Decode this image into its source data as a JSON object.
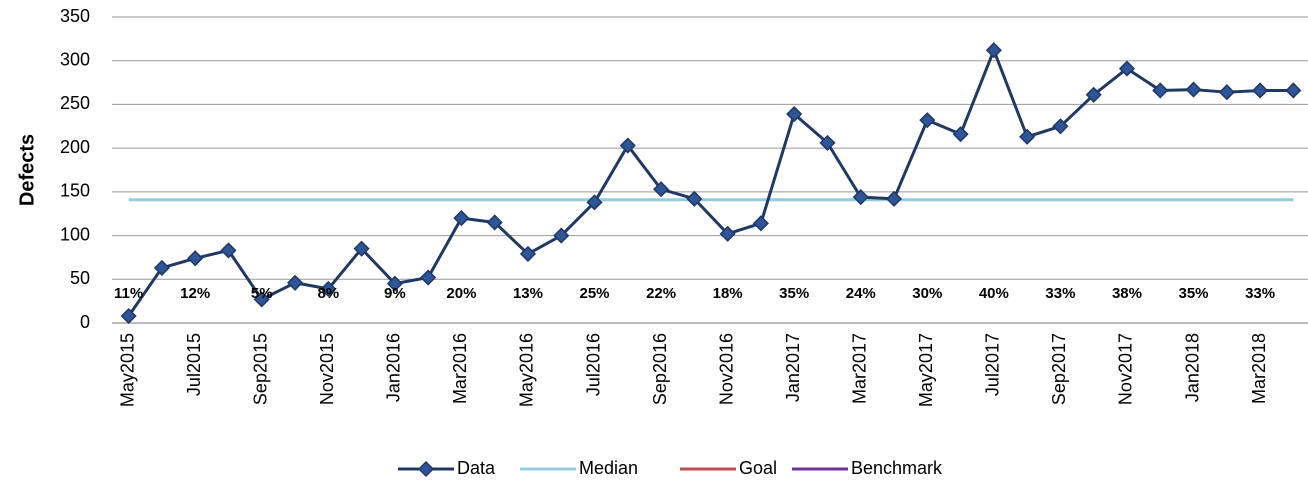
{
  "chart_data": {
    "type": "line",
    "y_label": "Defects",
    "categories": [
      "May2015",
      null,
      "Jul2015",
      null,
      "Sep2015",
      null,
      "Nov2015",
      null,
      "Jan2016",
      null,
      "Mar2016",
      null,
      "May2016",
      null,
      "Jul2016",
      null,
      "Sep2016",
      null,
      "Nov2016",
      null,
      "Jan2017",
      null,
      "Mar2017",
      null,
      "May2017",
      null,
      "Jul2017",
      null,
      "Sep2017",
      null,
      "Nov2017",
      null,
      "Jan2018",
      null,
      "Mar2018",
      null
    ],
    "series": [
      {
        "name": "Data",
        "color": "#1f3864",
        "marker_color": "#2e5597",
        "values": [
          8,
          63,
          74,
          83,
          27,
          46,
          39,
          85,
          45,
          52,
          120,
          115,
          79,
          100,
          138,
          203,
          153,
          142,
          102,
          114,
          239,
          206,
          144,
          142,
          232,
          216,
          312,
          213,
          225,
          261,
          291,
          266,
          267,
          264,
          266,
          266
        ]
      },
      {
        "name": "Median",
        "color": "#92cddc",
        "values": [
          141,
          141,
          141,
          141,
          141,
          141,
          141,
          141,
          141,
          141,
          141,
          141,
          141,
          141,
          141,
          141,
          141,
          141,
          141,
          141,
          141,
          141,
          141,
          141,
          141,
          141,
          141,
          141,
          141,
          141,
          141,
          141,
          141,
          141,
          141,
          141
        ]
      },
      {
        "name": "Goal",
        "color": "#c0504d",
        "values": [
          null,
          null,
          null,
          null,
          null,
          null,
          null,
          null,
          null,
          null,
          null,
          null,
          null,
          null,
          null,
          null,
          null,
          null,
          null,
          null,
          null,
          null,
          null,
          null,
          null,
          null,
          null,
          null,
          null,
          null,
          null,
          null,
          null,
          null,
          null,
          null
        ]
      },
      {
        "name": "Benchmark",
        "color": "#7030a0",
        "values": [
          null,
          null,
          null,
          null,
          null,
          null,
          null,
          null,
          null,
          null,
          null,
          null,
          null,
          null,
          null,
          null,
          null,
          null,
          null,
          null,
          null,
          null,
          null,
          null,
          null,
          null,
          null,
          null,
          null,
          null,
          null,
          null,
          null,
          null,
          null,
          null
        ]
      }
    ],
    "percent_labels": [
      "11%",
      null,
      "12%",
      null,
      "5%",
      null,
      "8%",
      null,
      "9%",
      null,
      "20%",
      null,
      "13%",
      null,
      "25%",
      null,
      "22%",
      null,
      "18%",
      null,
      "35%",
      null,
      "24%",
      null,
      "30%",
      null,
      "40%",
      null,
      "33%",
      null,
      "38%",
      null,
      "35%",
      null,
      "33%",
      null
    ],
    "ylim": [
      0,
      350
    ],
    "yticks": [
      0,
      50,
      100,
      150,
      200,
      250,
      300,
      350
    ],
    "grid": true
  }
}
